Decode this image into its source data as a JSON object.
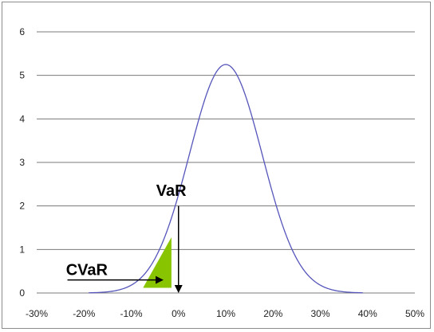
{
  "chart_data": {
    "type": "line",
    "title": "",
    "xlabel": "",
    "ylabel": "",
    "xlim": [
      -30,
      50
    ],
    "ylim": [
      0,
      6
    ],
    "x_tick_labels": [
      "-30%",
      "-20%",
      "-10%",
      "0%",
      "10%",
      "20%",
      "30%",
      "40%",
      "50%"
    ],
    "y_tick_labels": [
      "0",
      "1",
      "2",
      "3",
      "4",
      "5",
      "6"
    ],
    "grid": "horizontal",
    "series": [
      {
        "distribution": "normal",
        "mean_percent": 10,
        "stdev_percent": 7.7,
        "x_range": [
          -19,
          39
        ],
        "peak_value": 5.25,
        "color": "#5555bb"
      }
    ],
    "annotations": {
      "var": {
        "label": "VaR",
        "x_percent": 0
      },
      "cvar": {
        "label": "CVaR",
        "x_percent": -3
      }
    },
    "colors": {
      "grid": "#7a7a7a",
      "curve": "#5555bb",
      "tail_fill": "#88c400",
      "arrow": "#000000"
    }
  }
}
